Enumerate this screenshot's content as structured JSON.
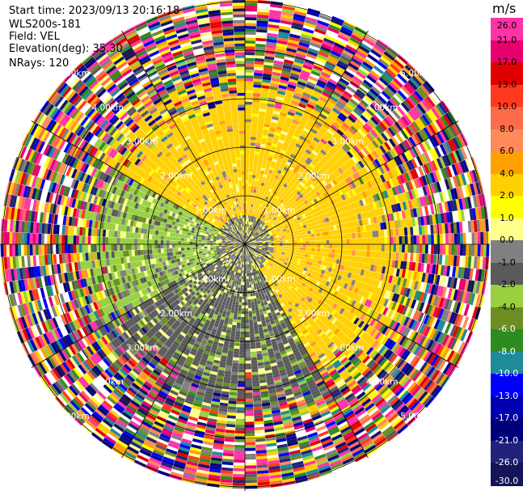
{
  "info": {
    "start_time": "Start time: 2023/09/13 20:16:18",
    "instrument": "WLS200s-181",
    "field": "Field: VEL",
    "elevation": "Elevation(deg): 35.30",
    "nrays": "NRays: 120"
  },
  "colorbar": {
    "unit": "m/s",
    "ticks": [
      "26.0",
      "21.0",
      "17.0",
      "13.0",
      "10.0",
      "8.0",
      "6.0",
      "4.0",
      "2.0",
      "1.0",
      "0.0",
      "-1.0",
      "-2.0",
      "-4.0",
      "-6.0",
      "-8.0",
      "-10.0",
      "-13.0",
      "-17.0",
      "-21.0",
      "-26.0",
      "-30.0"
    ],
    "colors": [
      "#ff33a8",
      "#e8006e",
      "#e00000",
      "#ff3a1e",
      "#ff6a4a",
      "#ff8a5a",
      "#ffa000",
      "#ffd000",
      "#ffff00",
      "#ffff8a",
      "#808080",
      "#5a5a5a",
      "#98d040",
      "#6b8e23",
      "#2e8b20",
      "#1f8a9a",
      "#0000ff",
      "#0000b0",
      "#00007a",
      "#22227a",
      "#14145a"
    ]
  },
  "chart_data": {
    "type": "heatmap",
    "projection": "polar PPI",
    "field": "VEL",
    "units": "m/s",
    "elevation_deg": 35.3,
    "n_rays": 120,
    "range_rings_km": [
      1,
      2,
      3,
      4,
      5
    ],
    "ring_labels": [
      "1.00km",
      "2.00km",
      "3.00km",
      "4.00km",
      "5.00km"
    ],
    "azimuth_lines_deg": [
      0,
      30,
      60,
      90,
      120,
      150,
      180,
      210,
      240,
      270,
      300,
      330
    ],
    "color_scale_min": -30.0,
    "color_scale_max": 26.0,
    "approx_sectors": [
      {
        "azimuth_from": 300,
        "azimuth_to": 60,
        "range_to_km": 3.5,
        "dominant_velocity": 2.0
      },
      {
        "azimuth_from": 60,
        "azimuth_to": 150,
        "range_to_km": 3.5,
        "dominant_velocity": 2.0
      },
      {
        "azimuth_from": 150,
        "azimuth_to": 240,
        "range_to_km": 3.5,
        "dominant_velocity": -2.0
      },
      {
        "azimuth_from": 240,
        "azimuth_to": 300,
        "range_to_km": 3.5,
        "dominant_velocity": -4.0
      },
      {
        "azimuth_from": 0,
        "azimuth_to": 360,
        "range_from_km": 0,
        "range_to_km": 0.6,
        "dominant_velocity": 0.0
      },
      {
        "azimuth_from": 0,
        "azimuth_to": 360,
        "range_from_km": 3.5,
        "range_to_km": 6.5,
        "dominant_velocity": "noisy"
      }
    ]
  }
}
